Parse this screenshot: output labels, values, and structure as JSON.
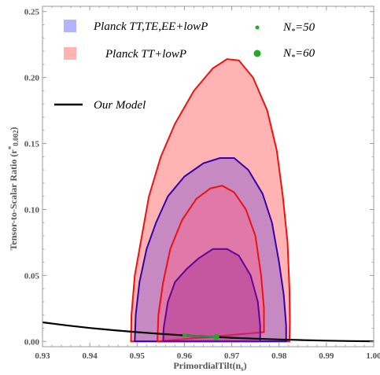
{
  "chart_data": {
    "type": "area",
    "xlabel": "Primordial Tilt (n_s)",
    "ylabel": "Tensor-to-Scalar Ratio (r*0.002)",
    "xlim": [
      0.93,
      1.0
    ],
    "ylim": [
      -0.004,
      0.254
    ],
    "x_ticks": [
      0.93,
      0.94,
      0.95,
      0.96,
      0.97,
      0.98,
      0.99,
      1.0
    ],
    "x_tick_labels": [
      "0.93",
      "0.94",
      "0.95",
      "0.96",
      "0.97",
      "0.98",
      "0.99",
      "1.00"
    ],
    "y_ticks": [
      0.0,
      0.05,
      0.1,
      0.15,
      0.2,
      0.25
    ],
    "y_tick_labels": [
      "0.00",
      "0.05",
      "0.10",
      "0.15",
      "0.20",
      "0.25"
    ],
    "legend": [
      {
        "label": "Planck TT,TE,EE+lowP",
        "type": "swatch",
        "color": "#b3b3ff"
      },
      {
        "label": "Planck TT+lowP",
        "type": "swatch",
        "color": "#ffb3b3"
      },
      {
        "label": "N* =50",
        "type": "point-small",
        "color": "#22aa22"
      },
      {
        "label": "N* =60",
        "type": "point-large",
        "color": "#22aa22"
      },
      {
        "label": "Our Model",
        "type": "line",
        "color": "#000000"
      }
    ],
    "series": [
      {
        "name": "Planck TT+lowP 95%",
        "fill": "#ffb3b3",
        "stroke": "#ee1111",
        "opacity": 1,
        "points": [
          [
            0.9487,
            0.0
          ],
          [
            0.9488,
            0.02
          ],
          [
            0.9495,
            0.05
          ],
          [
            0.951,
            0.08
          ],
          [
            0.9525,
            0.11
          ],
          [
            0.955,
            0.14
          ],
          [
            0.958,
            0.165
          ],
          [
            0.962,
            0.19
          ],
          [
            0.966,
            0.207
          ],
          [
            0.969,
            0.214
          ],
          [
            0.9715,
            0.213
          ],
          [
            0.9745,
            0.2
          ],
          [
            0.9775,
            0.175
          ],
          [
            0.9795,
            0.145
          ],
          [
            0.9808,
            0.11
          ],
          [
            0.9818,
            0.075
          ],
          [
            0.9822,
            0.04
          ],
          [
            0.9823,
            0.015
          ],
          [
            0.9822,
            0.0
          ]
        ]
      },
      {
        "name": "Planck TT,TE,EE+lowP 95%",
        "fill": "#9966cc",
        "stroke": "#3300aa",
        "opacity": 0.55,
        "points": [
          [
            0.9495,
            0.0
          ],
          [
            0.9497,
            0.02
          ],
          [
            0.9505,
            0.045
          ],
          [
            0.952,
            0.07
          ],
          [
            0.954,
            0.09
          ],
          [
            0.9565,
            0.11
          ],
          [
            0.96,
            0.125
          ],
          [
            0.964,
            0.135
          ],
          [
            0.9675,
            0.139
          ],
          [
            0.9705,
            0.139
          ],
          [
            0.9735,
            0.13
          ],
          [
            0.9765,
            0.112
          ],
          [
            0.9785,
            0.09
          ],
          [
            0.98,
            0.06
          ],
          [
            0.981,
            0.035
          ],
          [
            0.9815,
            0.012
          ],
          [
            0.9815,
            0.0
          ]
        ]
      },
      {
        "name": "Planck TT+lowP 68%",
        "fill": "#ff6688",
        "stroke": "#ee1111",
        "opacity": 0.45,
        "points": [
          [
            0.9543,
            0.0
          ],
          [
            0.9545,
            0.02
          ],
          [
            0.9555,
            0.045
          ],
          [
            0.957,
            0.07
          ],
          [
            0.9595,
            0.092
          ],
          [
            0.9625,
            0.108
          ],
          [
            0.9655,
            0.116
          ],
          [
            0.968,
            0.118
          ],
          [
            0.9705,
            0.113
          ],
          [
            0.973,
            0.1
          ],
          [
            0.975,
            0.08
          ],
          [
            0.9762,
            0.05
          ],
          [
            0.9768,
            0.025
          ],
          [
            0.9768,
            0.007
          ]
        ]
      },
      {
        "name": "Planck TT,TE,EE+lowP 68%",
        "fill": "#aa3399",
        "stroke": "#660099",
        "opacity": 0.5,
        "points": [
          [
            0.9555,
            0.0
          ],
          [
            0.9556,
            0.01
          ],
          [
            0.9565,
            0.03
          ],
          [
            0.958,
            0.045
          ],
          [
            0.9605,
            0.055
          ],
          [
            0.963,
            0.063
          ],
          [
            0.966,
            0.07
          ],
          [
            0.969,
            0.07
          ],
          [
            0.9715,
            0.065
          ],
          [
            0.974,
            0.05
          ],
          [
            0.9755,
            0.03
          ],
          [
            0.976,
            0.012
          ],
          [
            0.976,
            0.0
          ]
        ]
      },
      {
        "name": "Our Model",
        "stroke": "#000000",
        "line": true,
        "points": [
          [
            0.93,
            0.0145
          ],
          [
            0.935,
            0.0122
          ],
          [
            0.94,
            0.0102
          ],
          [
            0.945,
            0.0085
          ],
          [
            0.95,
            0.007
          ],
          [
            0.955,
            0.0057
          ],
          [
            0.96,
            0.0046
          ],
          [
            0.965,
            0.0036
          ],
          [
            0.97,
            0.0028
          ],
          [
            0.975,
            0.0021
          ],
          [
            0.98,
            0.0015
          ],
          [
            0.985,
            0.001
          ],
          [
            0.99,
            0.0006
          ],
          [
            0.995,
            0.0003
          ],
          [
            1.0,
            0.0001
          ]
        ]
      },
      {
        "name": "N*=50 to N*=60",
        "stroke": "#22aa22",
        "line": true,
        "points": [
          [
            0.96,
            0.0046
          ],
          [
            0.9667,
            0.0033
          ]
        ]
      }
    ],
    "markers": [
      {
        "label": "N*=50",
        "x": 0.96,
        "y": 0.0046,
        "size": "small",
        "color": "#22aa22"
      },
      {
        "label": "N*=60",
        "x": 0.9667,
        "y": 0.0033,
        "size": "large",
        "color": "#22aa22"
      }
    ]
  },
  "labels": {
    "ylabel_main": "Tensor-to-Scalar Ratio (r",
    "ylabel_sup": "*",
    "ylabel_sub": "0.002",
    "ylabel_end": ")",
    "xlabel_main": "PrimordialTilt(n",
    "xlabel_sub": "s",
    "xlabel_end": ")",
    "legend_planck_ttteee": "Planck TT,TE,EE+lowP",
    "legend_planck_tt": "Planck TT+lowP",
    "legend_n50_a": "N",
    "legend_n50_sub": "*",
    "legend_n50_b": "=50",
    "legend_n60_a": "N",
    "legend_n60_sub": "*",
    "legend_n60_b": "=60",
    "legend_model": "Our Model"
  }
}
